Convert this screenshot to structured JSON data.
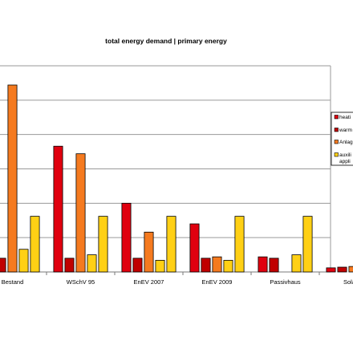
{
  "chart_data": {
    "type": "bar",
    "title": "total energy demand | primary energy",
    "xlabel": "",
    "ylabel": "",
    "categories": [
      "Bestand",
      "WSchV 95",
      "EnEV 2007",
      "EnEV 2009",
      "Passivhaus",
      "Solar H"
    ],
    "ylim": [
      0,
      300
    ],
    "grid": true,
    "legend_position": "right",
    "series": [
      {
        "name": "heati",
        "color": "#e0000f",
        "values": [
          0,
          183,
          100,
          70,
          22,
          6
        ]
      },
      {
        "name": "warm",
        "color": "#c00000",
        "values": [
          20,
          20,
          20,
          20,
          20,
          7
        ]
      },
      {
        "name": "Anlag",
        "color": "#f57a1f",
        "values": [
          272,
          172,
          58,
          22,
          0,
          8
        ]
      },
      {
        "name": "auxili appli",
        "color": "#ffd015",
        "values": [
          33,
          25,
          17,
          17,
          25,
          0
        ]
      },
      {
        "name": "",
        "color": "#ffd015",
        "values": [
          81,
          81,
          81,
          81,
          81,
          0
        ]
      }
    ]
  }
}
